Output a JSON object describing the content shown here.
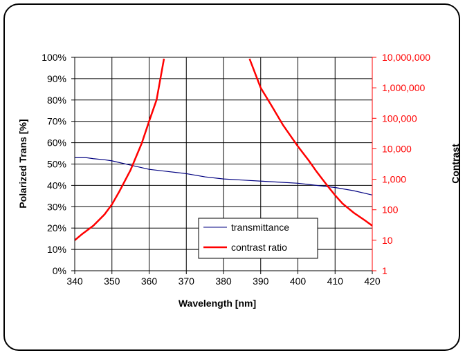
{
  "chart_data": {
    "type": "line",
    "xlabel": "Wavelength [nm]",
    "ylabel": "Polarized Trans [%]",
    "y2label": "Contrast",
    "xlim": [
      340,
      420
    ],
    "ylim": [
      0,
      100
    ],
    "y2lim": [
      1,
      10000000
    ],
    "y2_scale": "log",
    "grid": true,
    "legend_position": "bottom-right",
    "x_ticks": [
      "340",
      "350",
      "360",
      "370",
      "380",
      "390",
      "400",
      "410",
      "420"
    ],
    "y_ticks": [
      "0%",
      "10%",
      "20%",
      "30%",
      "40%",
      "50%",
      "60%",
      "70%",
      "80%",
      "90%",
      "100%"
    ],
    "y2_ticks": [
      "1",
      "10",
      "100",
      "1,000",
      "10,000",
      "100,000",
      "1,000,000",
      "10,000,000"
    ],
    "series": [
      {
        "name": "transmittance",
        "axis": "left",
        "color": "#000080",
        "x": [
          340,
          343,
          345,
          348,
          350,
          355,
          360,
          365,
          370,
          375,
          380,
          385,
          390,
          395,
          400,
          405,
          410,
          415,
          420
        ],
        "y": [
          53,
          53,
          52.5,
          52,
          51.5,
          49.5,
          47.5,
          46.5,
          45.5,
          44,
          43,
          42.5,
          42,
          41.5,
          41,
          40,
          39,
          37.5,
          35.5
        ]
      },
      {
        "name": "contrast ratio",
        "axis": "right",
        "color": "#ff0000",
        "x": [
          340,
          342,
          345,
          348,
          350,
          352,
          355,
          358,
          360,
          362,
          364
        ],
        "y": [
          10,
          16,
          30,
          70,
          150,
          400,
          2000,
          15000,
          80000,
          400000,
          9000000
        ],
        "x2": [
          387,
          390,
          393,
          396,
          400,
          403,
          405,
          408,
          410,
          412,
          415,
          418,
          420
        ],
        "y2": [
          9000000,
          1000000,
          250000,
          60000,
          12000,
          4000,
          1800,
          600,
          300,
          160,
          80,
          45,
          30
        ]
      }
    ]
  }
}
